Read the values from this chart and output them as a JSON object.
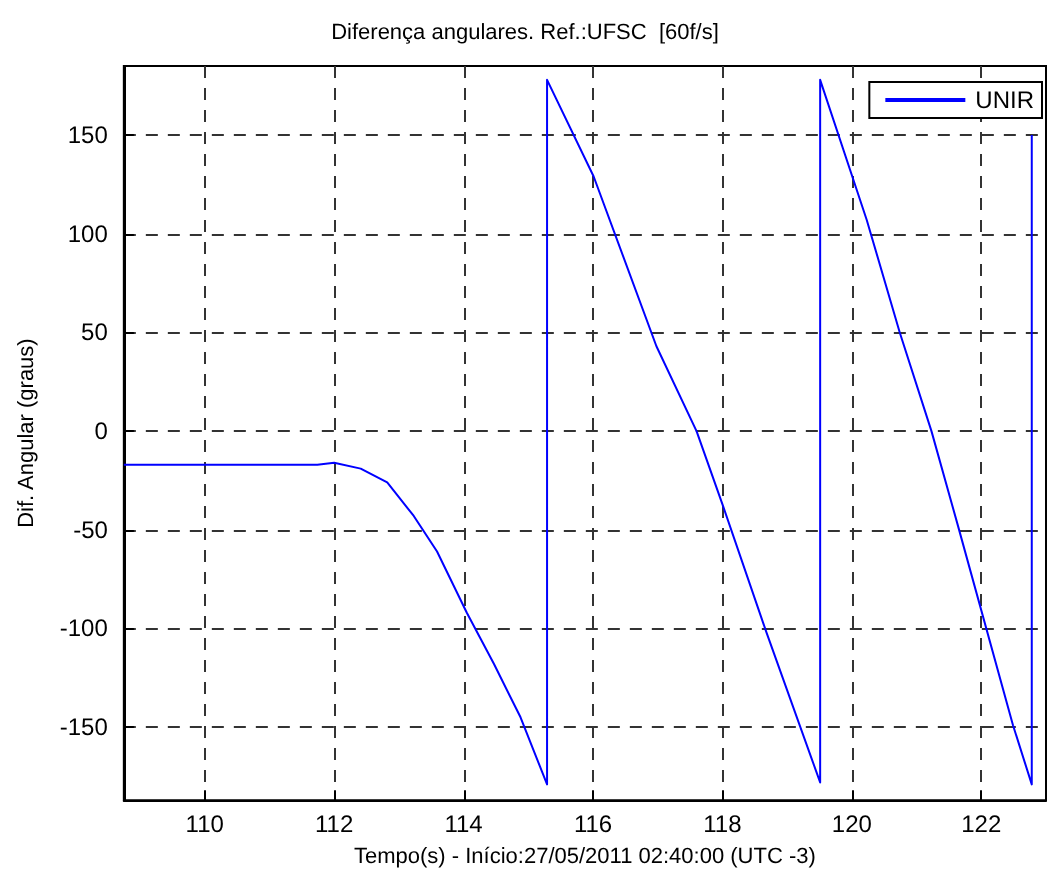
{
  "chart_data": {
    "type": "line",
    "title": "Diferença angulares. Ref.:UFSC  [60f/s]",
    "xlabel": "Tempo(s) - Início:27/05/2011 02:40:00 (UTC -3)",
    "ylabel": "Dif. Angular (graus)",
    "series": [
      {
        "name": "UNIR",
        "color": "#0000ff",
        "x": [
          108.75,
          111.74,
          112.0,
          112.41,
          112.82,
          113.23,
          113.59,
          114.05,
          114.47,
          114.88,
          115.29,
          115.29,
          116.01,
          116.98,
          117.6,
          118.01,
          118.68,
          119.51,
          119.51,
          120.23,
          120.74,
          121.23,
          121.64,
          122.49,
          122.78,
          122.78
        ],
        "values": [
          -17,
          -17,
          -16,
          -19,
          -26,
          -43,
          -61,
          -92,
          -118,
          -145,
          -179,
          178,
          129,
          43,
          0,
          -38,
          -102,
          -178,
          178,
          107,
          50,
          0,
          -48,
          -149,
          -179,
          150
        ]
      }
    ],
    "xlim": [
      108.75,
      123
    ],
    "xticks": [
      110,
      112,
      114,
      116,
      118,
      120,
      122
    ],
    "ylim": [
      -187,
      185
    ],
    "yticks": [
      -150,
      -100,
      -50,
      0,
      50,
      100,
      150
    ],
    "grid": true,
    "legend": "top right",
    "marker": "none",
    "line_style": "solid"
  }
}
